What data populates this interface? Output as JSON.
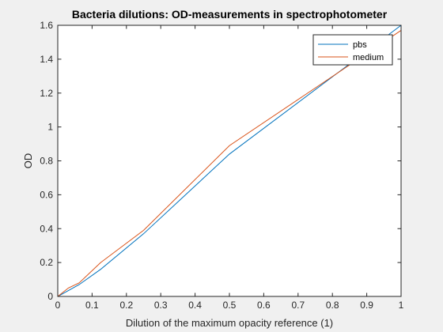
{
  "chart_data": {
    "type": "line",
    "title": "Bacteria dilutions: OD-measurements in spectrophotometer",
    "xlabel": "Dilution of the maximum opacity reference (1)",
    "ylabel": "OD",
    "xlim": [
      0,
      1
    ],
    "ylim": [
      0,
      1.6
    ],
    "xticks": [
      "0",
      "0.1",
      "0.2",
      "0.3",
      "0.4",
      "0.5",
      "0.6",
      "0.7",
      "0.8",
      "0.9",
      "1"
    ],
    "yticks": [
      "0",
      "0.2",
      "0.4",
      "0.6",
      "0.8",
      "1",
      "1.2",
      "1.4",
      "1.6"
    ],
    "grid": false,
    "legend_position": "top-right",
    "series": [
      {
        "name": "pbs",
        "color": "#0072bd",
        "x": [
          0,
          0.0625,
          0.125,
          0.25,
          0.5,
          1
        ],
        "y": [
          0,
          0.07,
          0.16,
          0.37,
          0.84,
          1.6
        ]
      },
      {
        "name": "medium",
        "color": "#d95319",
        "x": [
          0,
          0.03125,
          0.0625,
          0.125,
          0.25,
          0.5,
          1
        ],
        "y": [
          0,
          0.05,
          0.08,
          0.2,
          0.39,
          0.89,
          1.57
        ]
      }
    ]
  }
}
